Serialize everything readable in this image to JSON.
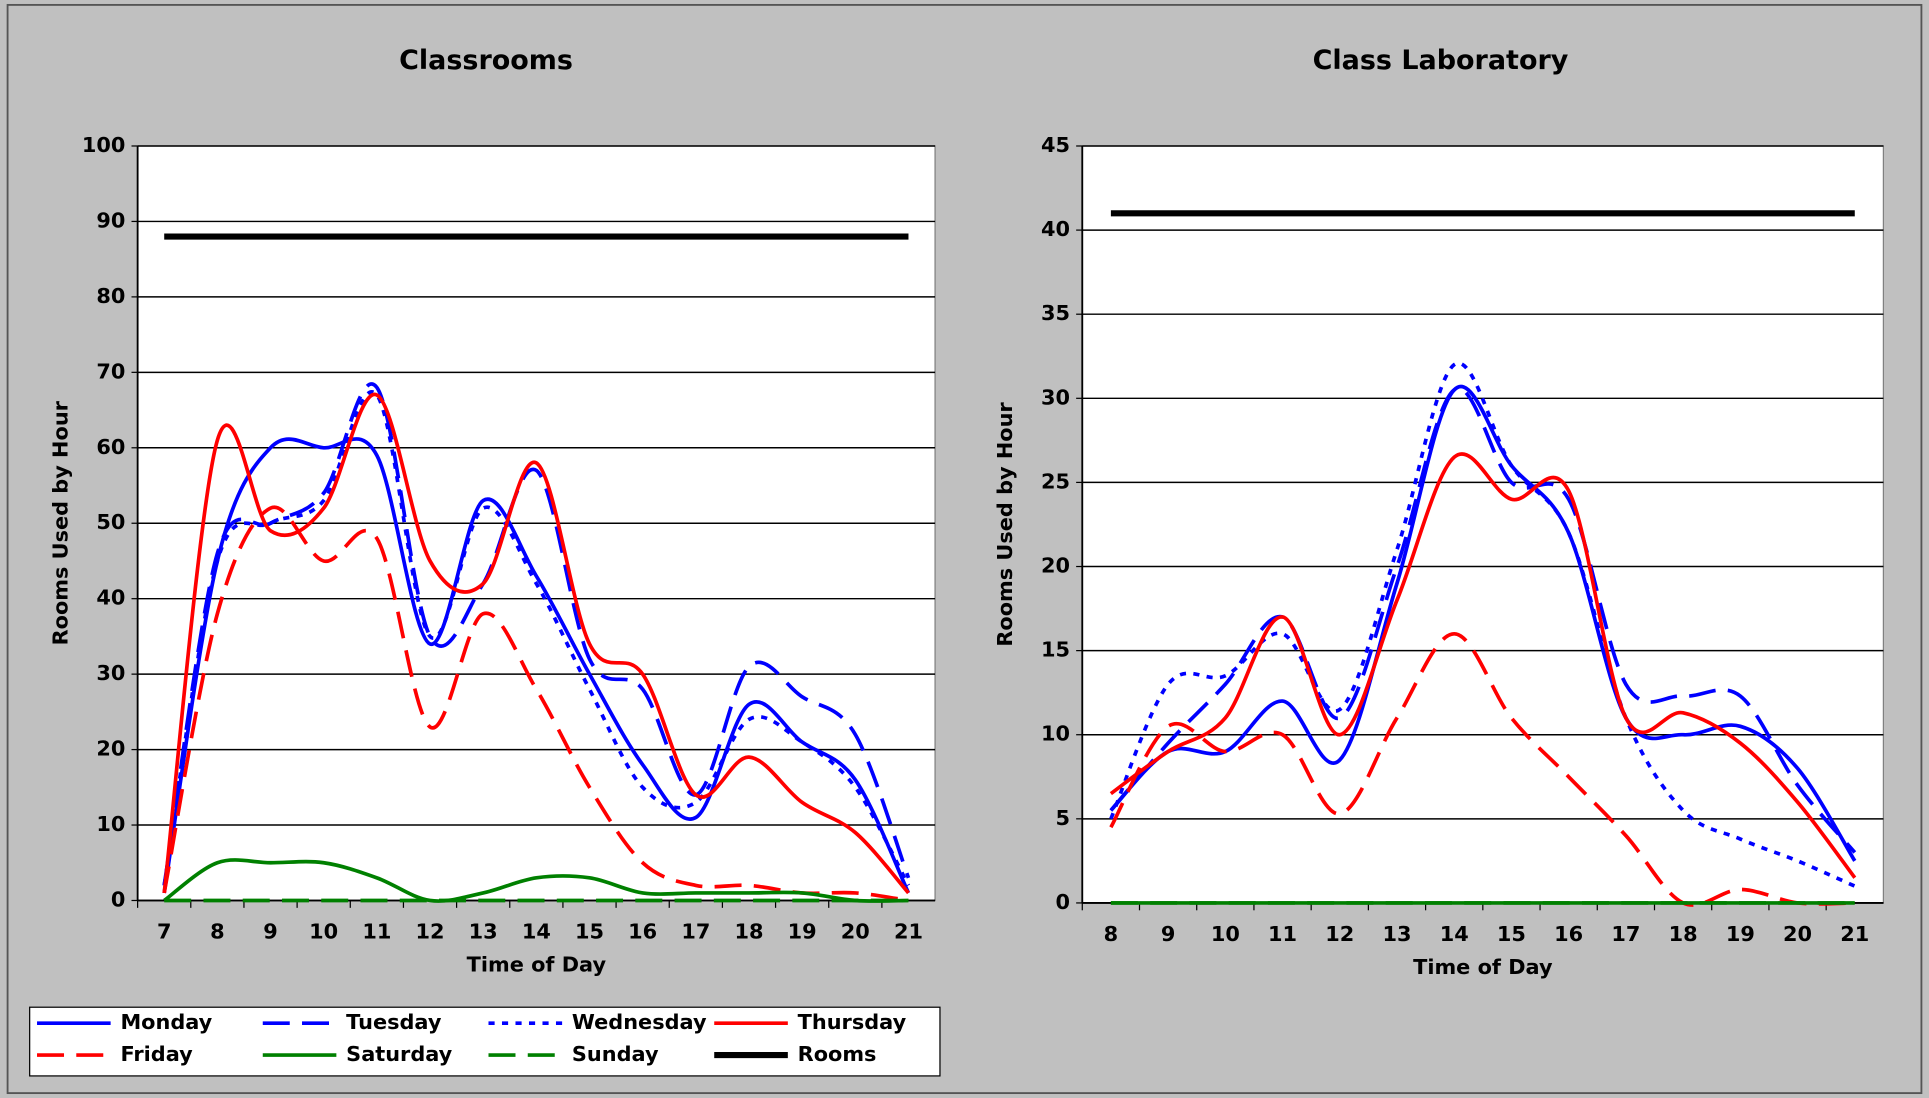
{
  "chart_data": [
    {
      "type": "line",
      "title": "Classrooms",
      "x_label": "Time of Day",
      "y_label": "Rooms Used by Hour",
      "categories": [
        "7",
        "8",
        "9",
        "10",
        "11",
        "12",
        "13",
        "14",
        "15",
        "16",
        "17",
        "18",
        "19",
        "20",
        "21"
      ],
      "ylim": [
        0,
        100
      ],
      "yticks": [
        0,
        10,
        20,
        30,
        40,
        50,
        60,
        70,
        80,
        90,
        100
      ],
      "grid": true,
      "smooth": true,
      "legend": "bottom",
      "series": [
        {
          "name": "Monday",
          "color": "#0000ff",
          "dash": "solid",
          "width": 3,
          "values": [
            1,
            45,
            60,
            60,
            59,
            34,
            53,
            43,
            30,
            18,
            11,
            26,
            21,
            16,
            1
          ]
        },
        {
          "name": "Tuesday",
          "color": "#0000ff",
          "dash": "dash",
          "width": 3,
          "values": [
            2,
            46,
            50,
            54,
            68,
            35,
            42,
            57,
            32,
            28,
            14,
            31,
            27,
            22,
            3
          ]
        },
        {
          "name": "Wednesday",
          "color": "#0000ff",
          "dash": "dot",
          "width": 3,
          "values": [
            2,
            45,
            50,
            53,
            67,
            35,
            52,
            42,
            28,
            15,
            13,
            24,
            21,
            15,
            2
          ]
        },
        {
          "name": "Thursday",
          "color": "#ff0000",
          "dash": "solid",
          "width": 3,
          "values": [
            1,
            61,
            49,
            52,
            67,
            45,
            42,
            58,
            34,
            30,
            14,
            19,
            13,
            9,
            1
          ]
        },
        {
          "name": "Friday",
          "color": "#ff0000",
          "dash": "dash",
          "width": 3,
          "values": [
            1,
            38,
            52,
            45,
            48,
            23,
            38,
            28,
            15,
            5,
            2,
            2,
            1,
            1,
            0
          ]
        },
        {
          "name": "Saturday",
          "color": "#008000",
          "dash": "solid",
          "width": 3,
          "values": [
            0,
            5,
            5,
            5,
            3,
            0,
            1,
            3,
            3,
            1,
            1,
            1,
            1,
            0,
            0
          ]
        },
        {
          "name": "Sunday",
          "color": "#008000",
          "dash": "dash",
          "width": 3,
          "values": [
            0,
            0,
            0,
            0,
            0,
            0,
            0,
            0,
            0,
            0,
            0,
            0,
            0,
            0,
            0
          ]
        },
        {
          "name": "Rooms",
          "color": "#000000",
          "dash": "solid",
          "width": 5,
          "values": [
            88,
            88,
            88,
            88,
            88,
            88,
            88,
            88,
            88,
            88,
            88,
            88,
            88,
            88,
            88
          ]
        }
      ]
    },
    {
      "type": "line",
      "title": "Class Laboratory",
      "x_label": "Time of Day",
      "y_label": "Rooms Used by Hour",
      "categories": [
        "8",
        "9",
        "10",
        "11",
        "12",
        "13",
        "14",
        "15",
        "16",
        "17",
        "18",
        "19",
        "20",
        "21"
      ],
      "ylim": [
        0,
        45
      ],
      "yticks": [
        0,
        5,
        10,
        15,
        20,
        25,
        30,
        35,
        40,
        45
      ],
      "grid": true,
      "smooth": true,
      "series": [
        {
          "name": "Monday",
          "color": "#0000ff",
          "dash": "solid",
          "width": 3,
          "values": [
            5.5,
            9,
            9,
            12,
            8.5,
            19,
            30.5,
            26,
            22,
            11,
            10,
            10.5,
            8,
            2.5
          ]
        },
        {
          "name": "Tuesday",
          "color": "#0000ff",
          "dash": "dash",
          "width": 3,
          "values": [
            5.5,
            9.5,
            13,
            17,
            11,
            20,
            30.5,
            25,
            24,
            13,
            12.3,
            12.3,
            7,
            3
          ]
        },
        {
          "name": "Wednesday",
          "color": "#0000ff",
          "dash": "dot",
          "width": 3,
          "values": [
            5,
            13,
            13.5,
            16,
            11.5,
            21,
            32,
            26,
            22,
            11,
            5.5,
            3.8,
            2.5,
            1
          ]
        },
        {
          "name": "Thursday",
          "color": "#ff0000",
          "dash": "solid",
          "width": 3,
          "values": [
            6.5,
            9,
            11,
            17,
            10,
            18,
            26.5,
            24,
            24.5,
            11,
            11.3,
            9.5,
            6,
            1.5
          ]
        },
        {
          "name": "Friday",
          "color": "#ff0000",
          "dash": "dash",
          "width": 3,
          "values": [
            4.5,
            10.5,
            9,
            10,
            5.3,
            11,
            16,
            11,
            7.5,
            4,
            0,
            0.8,
            0,
            0
          ]
        },
        {
          "name": "Saturday",
          "color": "#008000",
          "dash": "solid",
          "width": 3,
          "values": [
            0,
            0,
            0,
            0,
            0,
            0,
            0,
            0,
            0,
            0,
            0,
            0,
            0,
            0
          ]
        },
        {
          "name": "Sunday",
          "color": "#008000",
          "dash": "dash",
          "width": 3,
          "values": [
            0,
            0,
            0,
            0,
            0,
            0,
            0,
            0,
            0,
            0,
            0,
            0,
            0,
            0
          ]
        },
        {
          "name": "Rooms",
          "color": "#000000",
          "dash": "solid",
          "width": 5,
          "values": [
            41,
            41,
            41,
            41,
            41,
            41,
            41,
            41,
            41,
            41,
            41,
            41,
            41,
            41
          ]
        }
      ]
    }
  ]
}
